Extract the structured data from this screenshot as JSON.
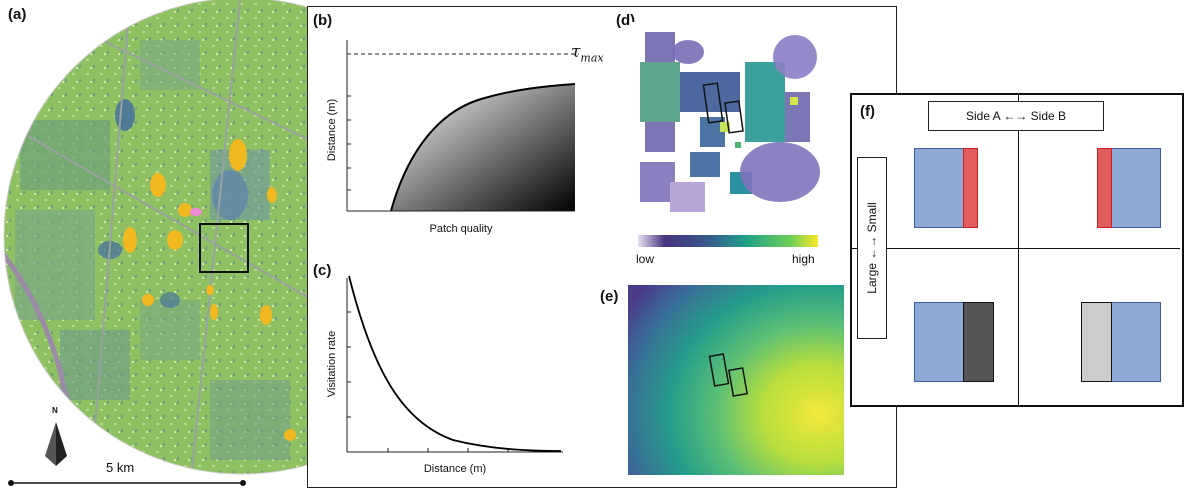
{
  "panels": {
    "a": {
      "label": "(a)",
      "scale": "5 km",
      "north": "N"
    },
    "b": {
      "label": "(b)",
      "xlabel": "Patch quality",
      "ylabel": "Distance (m)",
      "tau": "τ",
      "tau_sub": "max"
    },
    "c": {
      "label": "(c)",
      "xlabel": "Distance (m)",
      "ylabel": "Visitation rate"
    },
    "d": {
      "label": "(d)",
      "low": "low",
      "high": "high"
    },
    "e": {
      "label": "(e)"
    },
    "f": {
      "label": "(f)",
      "side_axis": "Side A ←→ Side B",
      "size_axis": "Large ←→ Small"
    }
  },
  "colors": {
    "landscape": "#8fc163",
    "edge_fill": "#e25c5c",
    "edge_border": "#c8201c",
    "patch_blue": "#8ea9d6",
    "patch_dark": "#555555",
    "patch_light": "#cccccc"
  }
}
